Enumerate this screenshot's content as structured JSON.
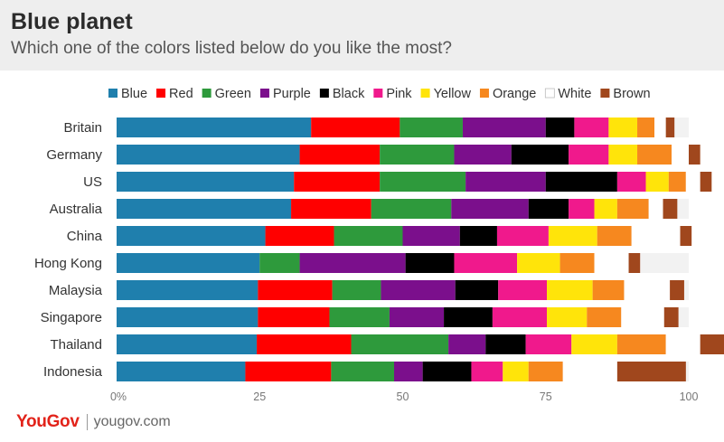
{
  "header": {
    "title": "Blue planet",
    "subtitle": "Which one of the colors listed below do you like the most?"
  },
  "footer": {
    "logo": "YouGov",
    "site": "yougov.com"
  },
  "chart_data": {
    "type": "bar",
    "orientation": "horizontal",
    "stacked": true,
    "categories": [
      "Britain",
      "Germany",
      "US",
      "Australia",
      "China",
      "Hong Kong",
      "Malaysia",
      "Singapore",
      "Thailand",
      "Indonesia"
    ],
    "xlim": [
      0,
      100
    ],
    "xticks": [
      0,
      25,
      50,
      75,
      100
    ],
    "xtick_labels": [
      "0%",
      "25",
      "50",
      "75",
      "100"
    ],
    "legend_position": "top",
    "grid": false,
    "series": [
      {
        "name": "Blue",
        "color": "#1f7fad",
        "values": [
          34,
          32,
          31,
          30.5,
          26,
          25,
          24.7,
          24.7,
          24.5,
          22.5
        ]
      },
      {
        "name": "Red",
        "color": "#ff0000",
        "values": [
          15.5,
          14,
          15,
          14,
          12,
          0,
          13,
          12.5,
          16.5,
          15
        ]
      },
      {
        "name": "Green",
        "color": "#2e9a3c",
        "values": [
          11,
          13,
          15,
          14,
          12,
          7,
          8.5,
          10.5,
          17,
          11
        ]
      },
      {
        "name": "Purple",
        "color": "#7b0f8c",
        "values": [
          14.5,
          10,
          14,
          13.5,
          10,
          18.5,
          13,
          9.5,
          6.5,
          5
        ]
      },
      {
        "name": "Black",
        "color": "#000000",
        "values": [
          5,
          10,
          12.5,
          7,
          6.5,
          8.5,
          7.5,
          8.5,
          7,
          8.5
        ]
      },
      {
        "name": "Pink",
        "color": "#f0198c",
        "values": [
          6,
          7,
          5,
          4.5,
          9,
          11,
          8.5,
          9.5,
          8,
          5.5
        ]
      },
      {
        "name": "Yellow",
        "color": "#ffe40a",
        "values": [
          5,
          5,
          4,
          4,
          8.5,
          7.5,
          8,
          7,
          8,
          4.5
        ]
      },
      {
        "name": "Orange",
        "color": "#f6881f",
        "values": [
          3,
          6,
          3,
          5.5,
          6,
          6,
          5.5,
          6,
          8.5,
          6
        ]
      },
      {
        "name": "White",
        "color": "#ffffff",
        "values": [
          2,
          3,
          2.5,
          2.5,
          8.5,
          6,
          8,
          7.5,
          6,
          9.5
        ]
      },
      {
        "name": "Brown",
        "color": "#a0471d",
        "values": [
          1.5,
          2,
          2,
          2.5,
          2,
          2,
          2.5,
          2.5,
          4.5,
          12
        ]
      }
    ]
  }
}
